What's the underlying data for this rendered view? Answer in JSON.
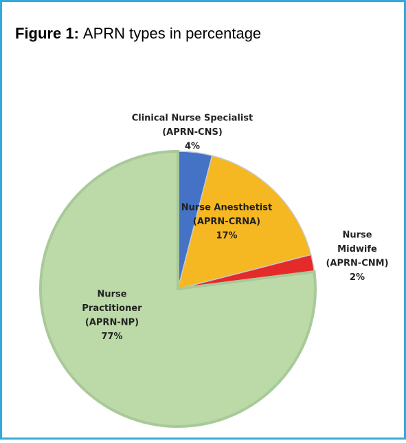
{
  "chart_data": {
    "type": "pie",
    "title_prefix": "Figure 1:",
    "title": "APRN types in percentage",
    "categories": [
      [
        "Clinical Nurse Specialist",
        "(APRN-CNS)"
      ],
      [
        "Nurse Anesthetist",
        "(APRN-CRNA)"
      ],
      [
        "Nurse",
        "Midwife",
        "(APRN-CNM)"
      ],
      [
        "Nurse",
        "Practitioner",
        "(APRN-NP)"
      ]
    ],
    "values": [
      4,
      17,
      2,
      77
    ],
    "value_labels": [
      "4%",
      "17%",
      "2%",
      "77%"
    ],
    "colors": [
      "#4472c4",
      "#f6b822",
      "#e52a2a",
      "#bcdaa8"
    ]
  }
}
